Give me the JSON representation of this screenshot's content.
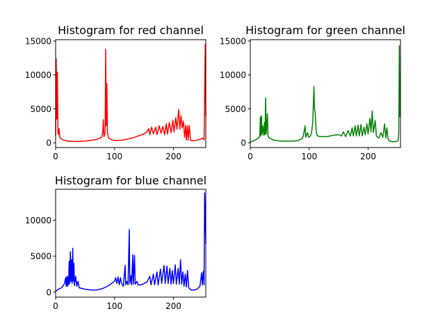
{
  "figure": {
    "background": "#ffffff"
  },
  "chart_data": [
    {
      "type": "line",
      "title": "Histogram for red channel",
      "xlabel": "",
      "ylabel": "",
      "xlim": [
        0,
        255
      ],
      "ylim": [
        -700,
        15200
      ],
      "xticks": [
        0,
        100,
        200
      ],
      "yticks": [
        0,
        5000,
        10000,
        15000
      ],
      "color": "#ff0000",
      "grid": false,
      "points": [
        [
          0,
          1000
        ],
        [
          1,
          12400
        ],
        [
          2,
          3500
        ],
        [
          3,
          10400
        ],
        [
          4,
          1500
        ],
        [
          5,
          1200
        ],
        [
          6,
          2100
        ],
        [
          7,
          800
        ],
        [
          10,
          500
        ],
        [
          15,
          350
        ],
        [
          20,
          250
        ],
        [
          30,
          200
        ],
        [
          40,
          200
        ],
        [
          50,
          250
        ],
        [
          60,
          350
        ],
        [
          70,
          500
        ],
        [
          78,
          800
        ],
        [
          80,
          1500
        ],
        [
          81,
          3400
        ],
        [
          82,
          900
        ],
        [
          84,
          1500
        ],
        [
          85,
          13800
        ],
        [
          86,
          2500
        ],
        [
          87,
          8700
        ],
        [
          88,
          1500
        ],
        [
          90,
          700
        ],
        [
          95,
          450
        ],
        [
          100,
          350
        ],
        [
          110,
          350
        ],
        [
          120,
          500
        ],
        [
          130,
          700
        ],
        [
          140,
          1000
        ],
        [
          150,
          1300
        ],
        [
          155,
          1600
        ],
        [
          158,
          2100
        ],
        [
          160,
          1200
        ],
        [
          163,
          2300
        ],
        [
          166,
          1300
        ],
        [
          170,
          2300
        ],
        [
          172,
          1200
        ],
        [
          176,
          2500
        ],
        [
          179,
          1400
        ],
        [
          182,
          2400
        ],
        [
          185,
          1200
        ],
        [
          188,
          2800
        ],
        [
          190,
          1300
        ],
        [
          193,
          3000
        ],
        [
          196,
          1500
        ],
        [
          199,
          3300
        ],
        [
          201,
          1600
        ],
        [
          204,
          3700
        ],
        [
          206,
          2000
        ],
        [
          209,
          4900
        ],
        [
          211,
          2000
        ],
        [
          213,
          4000
        ],
        [
          215,
          2200
        ],
        [
          217,
          3200
        ],
        [
          219,
          800
        ],
        [
          221,
          2600
        ],
        [
          222,
          400
        ],
        [
          224,
          2500
        ],
        [
          225,
          400
        ],
        [
          227,
          2500
        ],
        [
          229,
          350
        ],
        [
          235,
          300
        ],
        [
          240,
          400
        ],
        [
          245,
          500
        ],
        [
          250,
          700
        ],
        [
          252,
          400
        ],
        [
          254,
          14500
        ],
        [
          255,
          4000
        ]
      ]
    },
    {
      "type": "line",
      "title": "Histogram for green channel",
      "xlabel": "",
      "ylabel": "",
      "xlim": [
        0,
        255
      ],
      "ylim": [
        -700,
        15200
      ],
      "xticks": [
        0,
        100,
        200
      ],
      "yticks": [
        0,
        5000,
        10000,
        15000
      ],
      "color": "#008000",
      "grid": false,
      "points": [
        [
          0,
          100
        ],
        [
          5,
          250
        ],
        [
          10,
          500
        ],
        [
          14,
          700
        ],
        [
          16,
          1000
        ],
        [
          17,
          3800
        ],
        [
          18,
          1000
        ],
        [
          19,
          4000
        ],
        [
          20,
          1200
        ],
        [
          21,
          2500
        ],
        [
          23,
          1100
        ],
        [
          24,
          3000
        ],
        [
          25,
          1200
        ],
        [
          26,
          6600
        ],
        [
          27,
          1300
        ],
        [
          29,
          4300
        ],
        [
          30,
          1000
        ],
        [
          32,
          700
        ],
        [
          35,
          600
        ],
        [
          40,
          400
        ],
        [
          50,
          250
        ],
        [
          60,
          250
        ],
        [
          70,
          250
        ],
        [
          80,
          300
        ],
        [
          88,
          600
        ],
        [
          90,
          1000
        ],
        [
          93,
          2500
        ],
        [
          94,
          800
        ],
        [
          97,
          1500
        ],
        [
          99,
          800
        ],
        [
          102,
          1000
        ],
        [
          104,
          1500
        ],
        [
          106,
          3000
        ],
        [
          107,
          5500
        ],
        [
          108,
          8300
        ],
        [
          109,
          5000
        ],
        [
          110,
          4500
        ],
        [
          112,
          1500
        ],
        [
          114,
          1000
        ],
        [
          120,
          900
        ],
        [
          130,
          900
        ],
        [
          140,
          1100
        ],
        [
          150,
          1200
        ],
        [
          155,
          1000
        ],
        [
          158,
          1600
        ],
        [
          162,
          900
        ],
        [
          166,
          1800
        ],
        [
          170,
          1000
        ],
        [
          173,
          2200
        ],
        [
          175,
          1000
        ],
        [
          178,
          2500
        ],
        [
          180,
          1000
        ],
        [
          183,
          2600
        ],
        [
          185,
          1000
        ],
        [
          188,
          2700
        ],
        [
          190,
          1000
        ],
        [
          193,
          2300
        ],
        [
          195,
          1200
        ],
        [
          198,
          2800
        ],
        [
          200,
          1300
        ],
        [
          203,
          3600
        ],
        [
          205,
          1600
        ],
        [
          207,
          4700
        ],
        [
          209,
          1500
        ],
        [
          212,
          3300
        ],
        [
          214,
          1000
        ],
        [
          218,
          700
        ],
        [
          222,
          1500
        ],
        [
          225,
          800
        ],
        [
          228,
          2800
        ],
        [
          230,
          700
        ],
        [
          232,
          2200
        ],
        [
          234,
          500
        ],
        [
          238,
          200
        ],
        [
          243,
          150
        ],
        [
          248,
          200
        ],
        [
          251,
          300
        ],
        [
          252,
          1500
        ],
        [
          253,
          14300
        ],
        [
          254,
          3800
        ]
      ]
    },
    {
      "type": "line",
      "title": "Histogram for blue channel",
      "xlabel": "",
      "ylabel": "",
      "xlim": [
        0,
        255
      ],
      "ylim": [
        -700,
        14300
      ],
      "xticks": [
        0,
        100,
        200
      ],
      "yticks": [
        0,
        5000,
        10000
      ],
      "color": "#0000ff",
      "grid": false,
      "points": [
        [
          0,
          100
        ],
        [
          5,
          400
        ],
        [
          10,
          600
        ],
        [
          13,
          900
        ],
        [
          15,
          1200
        ],
        [
          17,
          2000
        ],
        [
          18,
          800
        ],
        [
          19,
          2200
        ],
        [
          20,
          800
        ],
        [
          21,
          2100
        ],
        [
          22,
          1000
        ],
        [
          23,
          4300
        ],
        [
          24,
          1200
        ],
        [
          25,
          5600
        ],
        [
          26,
          1500
        ],
        [
          27,
          4500
        ],
        [
          28,
          1200
        ],
        [
          29,
          6100
        ],
        [
          30,
          1500
        ],
        [
          31,
          4000
        ],
        [
          32,
          900
        ],
        [
          34,
          2200
        ],
        [
          36,
          800
        ],
        [
          38,
          1500
        ],
        [
          40,
          600
        ],
        [
          45,
          500
        ],
        [
          50,
          400
        ],
        [
          60,
          300
        ],
        [
          70,
          300
        ],
        [
          80,
          500
        ],
        [
          90,
          900
        ],
        [
          95,
          1200
        ],
        [
          100,
          1500
        ],
        [
          102,
          2000
        ],
        [
          104,
          1200
        ],
        [
          106,
          2100
        ],
        [
          108,
          1000
        ],
        [
          110,
          2000
        ],
        [
          112,
          1200
        ],
        [
          115,
          800
        ],
        [
          118,
          3700
        ],
        [
          119,
          1000
        ],
        [
          121,
          1500
        ],
        [
          123,
          1000
        ],
        [
          125,
          8700
        ],
        [
          126,
          1200
        ],
        [
          128,
          2300
        ],
        [
          129,
          1000
        ],
        [
          131,
          5200
        ],
        [
          132,
          1100
        ],
        [
          134,
          5100
        ],
        [
          135,
          1100
        ],
        [
          138,
          1500
        ],
        [
          140,
          1000
        ],
        [
          145,
          1000
        ],
        [
          150,
          1200
        ],
        [
          155,
          1400
        ],
        [
          160,
          2200
        ],
        [
          162,
          1000
        ],
        [
          166,
          2500
        ],
        [
          168,
          1000
        ],
        [
          172,
          2800
        ],
        [
          174,
          1000
        ],
        [
          178,
          3200
        ],
        [
          180,
          1200
        ],
        [
          184,
          3700
        ],
        [
          186,
          1200
        ],
        [
          189,
          3600
        ],
        [
          191,
          1200
        ],
        [
          194,
          3300
        ],
        [
          196,
          1100
        ],
        [
          198,
          3000
        ],
        [
          200,
          1200
        ],
        [
          203,
          3800
        ],
        [
          205,
          1100
        ],
        [
          208,
          3300
        ],
        [
          210,
          1100
        ],
        [
          212,
          4500
        ],
        [
          214,
          1100
        ],
        [
          216,
          2800
        ],
        [
          218,
          800
        ],
        [
          220,
          2500
        ],
        [
          222,
          700
        ],
        [
          224,
          3000
        ],
        [
          226,
          600
        ],
        [
          230,
          300
        ],
        [
          235,
          300
        ],
        [
          240,
          400
        ],
        [
          245,
          800
        ],
        [
          248,
          2700
        ],
        [
          249,
          1000
        ],
        [
          251,
          2900
        ],
        [
          252,
          1000
        ],
        [
          253,
          13800
        ],
        [
          255,
          6700
        ]
      ]
    }
  ]
}
